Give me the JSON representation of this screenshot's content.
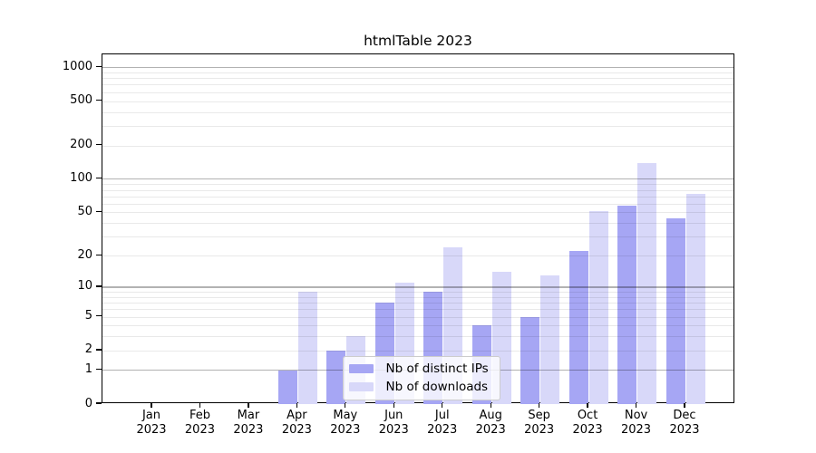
{
  "chart_data": {
    "type": "bar",
    "title": "htmlTable 2023",
    "categories": [
      "Jan 2023",
      "Feb 2023",
      "Mar 2023",
      "Apr 2023",
      "May 2023",
      "Jun 2023",
      "Jul 2023",
      "Aug 2023",
      "Sep 2023",
      "Oct 2023",
      "Nov 2023",
      "Dec 2023"
    ],
    "series": [
      {
        "name": "Nb of distinct IPs",
        "color": "#a6a6f4",
        "values": [
          0,
          0,
          0,
          1,
          2,
          7,
          9,
          4,
          5,
          22,
          58,
          44
        ]
      },
      {
        "name": "Nb of downloads",
        "color": "#d8d8f9",
        "values": [
          0,
          0,
          0,
          9,
          3,
          11,
          24,
          14,
          13,
          51,
          140,
          74
        ]
      }
    ],
    "xlabel": "",
    "ylabel": "",
    "y_scale": "log10(1+x)",
    "ylim": [
      0,
      1317
    ],
    "y_tick_values": [
      0,
      1,
      2,
      5,
      10,
      20,
      50,
      100,
      200,
      500,
      1000
    ],
    "y_tick_labels": [
      "0",
      "1",
      "2",
      "5",
      "10",
      "20",
      "50",
      "100",
      "200",
      "500",
      "1000"
    ],
    "grid": "horizontal major+minor",
    "legend_position": "lower center",
    "axis_color": "#000000",
    "grid_major_color": "#b0b0b0",
    "grid_minor_color": "#e8e8e8"
  }
}
